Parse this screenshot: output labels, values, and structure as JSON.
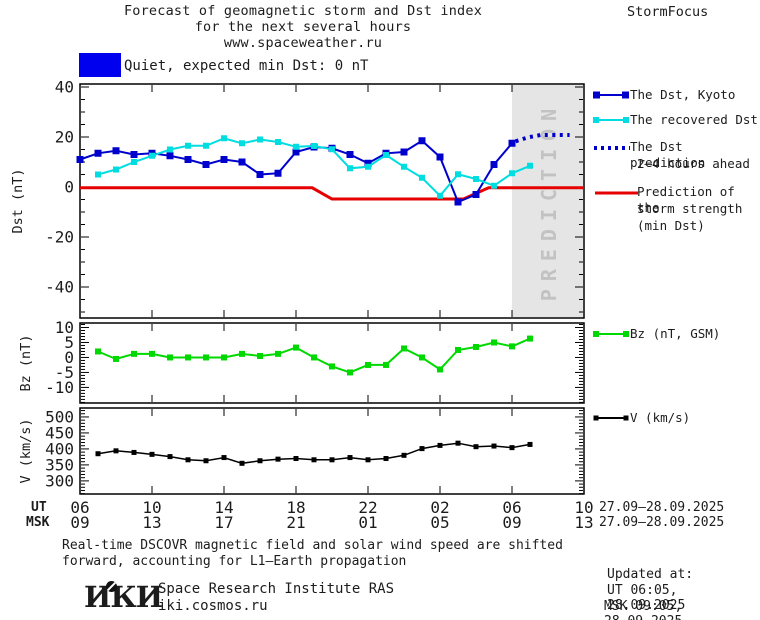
{
  "header": {
    "title_line1": "Forecast of geomagnetic storm and Dst index",
    "title_line2": "for the next several hours",
    "title_line3": "www.spaceweather.ru",
    "brand": "StormFocus"
  },
  "status_banner": {
    "label": "Quiet, expected min Dst: 0 nT",
    "box_color": "#0000ee"
  },
  "colors": {
    "dst_kyoto": "#0000cd",
    "recovered_dst": "#00dde0",
    "prediction_red": "#e60000",
    "bz_green": "#00d900",
    "v_black": "#000000",
    "band_fill": "#e5e5e5",
    "band_text": "#c2c2c2"
  },
  "chart_data": [
    {
      "type": "line",
      "id": "dst",
      "ylabel": "Dst (nT)",
      "ylim": [
        -52.4,
        41.2
      ],
      "yticks": [
        40,
        20,
        0,
        -20,
        -40
      ],
      "minor_step": 5,
      "xlim_hours": [
        0,
        28
      ],
      "prediction_band": {
        "from_hour": 24,
        "to_hour": 28,
        "label": "PREDICTION"
      },
      "series": [
        {
          "name": "Prediction of the storm strength (min Dst)",
          "color": "#e60000",
          "width": 3,
          "marker": 0,
          "points": [
            [
              0,
              -0.3
            ],
            [
              12.9,
              -0.3
            ],
            [
              14,
              -4.8
            ],
            [
              21.3,
              -4.8
            ],
            [
              22.7,
              -0.3
            ],
            [
              28,
              -0.3
            ]
          ]
        },
        {
          "name": "The Dst, Kyoto",
          "color": "#0000cd",
          "width": 2,
          "marker": 7,
          "points": [
            [
              0,
              11
            ],
            [
              1,
              13.5
            ],
            [
              2,
              14.5
            ],
            [
              3,
              13
            ],
            [
              4,
              13.5
            ],
            [
              5,
              12.5
            ],
            [
              6,
              11
            ],
            [
              7,
              9
            ],
            [
              8,
              11
            ],
            [
              9,
              10
            ],
            [
              10,
              5
            ],
            [
              11,
              5.5
            ],
            [
              12,
              14
            ],
            [
              13,
              16
            ],
            [
              14,
              15.5
            ],
            [
              15,
              13
            ],
            [
              16,
              9.5
            ],
            [
              17,
              13.5
            ],
            [
              18,
              14
            ],
            [
              19,
              18.5
            ],
            [
              20,
              12
            ],
            [
              21,
              -6
            ],
            [
              22,
              -3
            ],
            [
              23,
              9
            ],
            [
              24,
              17.5
            ]
          ]
        },
        {
          "name": "The recovered Dst",
          "color": "#00dde0",
          "width": 2,
          "marker": 6,
          "points": [
            [
              1,
              5
            ],
            [
              2,
              7
            ],
            [
              3,
              10
            ],
            [
              4,
              12.5
            ],
            [
              5,
              15
            ],
            [
              6,
              16.5
            ],
            [
              7,
              16.5
            ],
            [
              8,
              19.5
            ],
            [
              9,
              17.5
            ],
            [
              10,
              19
            ],
            [
              11,
              18
            ],
            [
              12,
              16.1
            ],
            [
              13,
              16.4
            ],
            [
              14,
              15.1
            ],
            [
              15,
              7.5
            ],
            [
              16,
              8.1
            ],
            [
              17,
              12.8
            ],
            [
              18,
              8.1
            ],
            [
              19,
              3.7
            ],
            [
              20,
              -3.5
            ],
            [
              21,
              5.1
            ],
            [
              22,
              3.2
            ],
            [
              23,
              0.5
            ],
            [
              24,
              5.5
            ],
            [
              25,
              8.5
            ]
          ]
        },
        {
          "name": "The Dst prediction 2-4 hours ahead",
          "color": "#0000cd",
          "width": 4,
          "marker": 0,
          "dash": "3 4.5",
          "points": [
            [
              24.2,
              18.3
            ],
            [
              24.9,
              19.9
            ],
            [
              25.6,
              20.8
            ],
            [
              27.2,
              20.8
            ]
          ]
        }
      ]
    },
    {
      "type": "line",
      "id": "bz",
      "ylabel": "Bz (nT)",
      "ylim": [
        -15.2,
        11.5
      ],
      "yticks": [
        10,
        5,
        0,
        -5,
        -10
      ],
      "minor_step": 1,
      "xlim_hours": [
        0,
        28
      ],
      "series": [
        {
          "name": "Bz (nT, GSM)",
          "color": "#00d900",
          "width": 2,
          "marker": 6,
          "points": [
            [
              1,
              2
            ],
            [
              2,
              -0.5
            ],
            [
              3,
              1.2
            ],
            [
              4,
              1.2
            ],
            [
              5,
              0
            ],
            [
              6,
              0
            ],
            [
              7,
              0
            ],
            [
              8,
              0
            ],
            [
              9,
              1.2
            ],
            [
              10,
              0.5
            ],
            [
              11,
              1.2
            ],
            [
              12,
              3.3
            ],
            [
              13,
              0
            ],
            [
              14,
              -3
            ],
            [
              15,
              -5
            ],
            [
              16,
              -2.5
            ],
            [
              17,
              -2.5
            ],
            [
              18,
              3
            ],
            [
              19,
              0
            ],
            [
              20,
              -4
            ],
            [
              21,
              2.5
            ],
            [
              22,
              3.5
            ],
            [
              23,
              5
            ],
            [
              24,
              3.7
            ],
            [
              25,
              6.3
            ]
          ]
        }
      ]
    },
    {
      "type": "line",
      "id": "v",
      "ylabel": "V (km/s)",
      "ylim": [
        259,
        528
      ],
      "yticks": [
        500,
        450,
        400,
        350,
        300
      ],
      "minor_step": 10,
      "xlim_hours": [
        0,
        28
      ],
      "series": [
        {
          "name": "V (km/s)",
          "color": "#000000",
          "width": 1.5,
          "marker": 5,
          "points": [
            [
              1,
              385
            ],
            [
              2,
              394
            ],
            [
              3,
              389
            ],
            [
              4,
              383
            ],
            [
              5,
              376
            ],
            [
              6,
              366
            ],
            [
              7,
              363
            ],
            [
              8,
              373
            ],
            [
              9,
              355
            ],
            [
              10,
              363
            ],
            [
              11,
              368
            ],
            [
              12,
              370
            ],
            [
              13,
              366
            ],
            [
              14,
              366
            ],
            [
              15,
              373
            ],
            [
              16,
              366
            ],
            [
              17,
              370
            ],
            [
              18,
              380
            ],
            [
              19,
              401
            ],
            [
              20,
              411
            ],
            [
              21,
              418
            ],
            [
              22,
              407
            ],
            [
              23,
              409
            ],
            [
              24,
              404
            ],
            [
              25,
              414
            ]
          ]
        }
      ]
    }
  ],
  "xaxis": {
    "ut_label": "UT",
    "msk_label": "MSK",
    "tick_hours": [
      0,
      4,
      8,
      12,
      16,
      20,
      24,
      28
    ],
    "ut_hours": [
      "06",
      "10",
      "14",
      "18",
      "22",
      "02",
      "06",
      "10"
    ],
    "msk_hours": [
      "09",
      "13",
      "17",
      "21",
      "01",
      "05",
      "09",
      "13"
    ],
    "date_range_ut": "27.09–28.09.2025",
    "date_range_msk": "27.09–28.09.2025"
  },
  "legend_dst": {
    "items": [
      {
        "label": "The Dst, Kyoto"
      },
      {
        "label": "The recovered Dst"
      },
      {
        "label": "The Dst prediction",
        "label2": "2–4 hours ahead"
      },
      {
        "label": "Prediction of the",
        "label2": "storm strength",
        "label3": "(min Dst)"
      }
    ]
  },
  "legend_bz": {
    "label": "Bz (nT, GSM)"
  },
  "legend_v": {
    "label": "V (km/s)"
  },
  "footnote": {
    "line1": "Real-time DSCOVR magnetic field and solar wind speed are shifted",
    "line2": "forward, accounting for L1–Earth propagation"
  },
  "org": {
    "logo": "ИКИ",
    "name": "Space Research Institute RAS",
    "url": "iki.cosmos.ru"
  },
  "updated": {
    "heading": "Updated at:",
    "ut": "UT  06:05, 28.09.2025",
    "msk": "MSK 09:05, 28.09.2025"
  }
}
